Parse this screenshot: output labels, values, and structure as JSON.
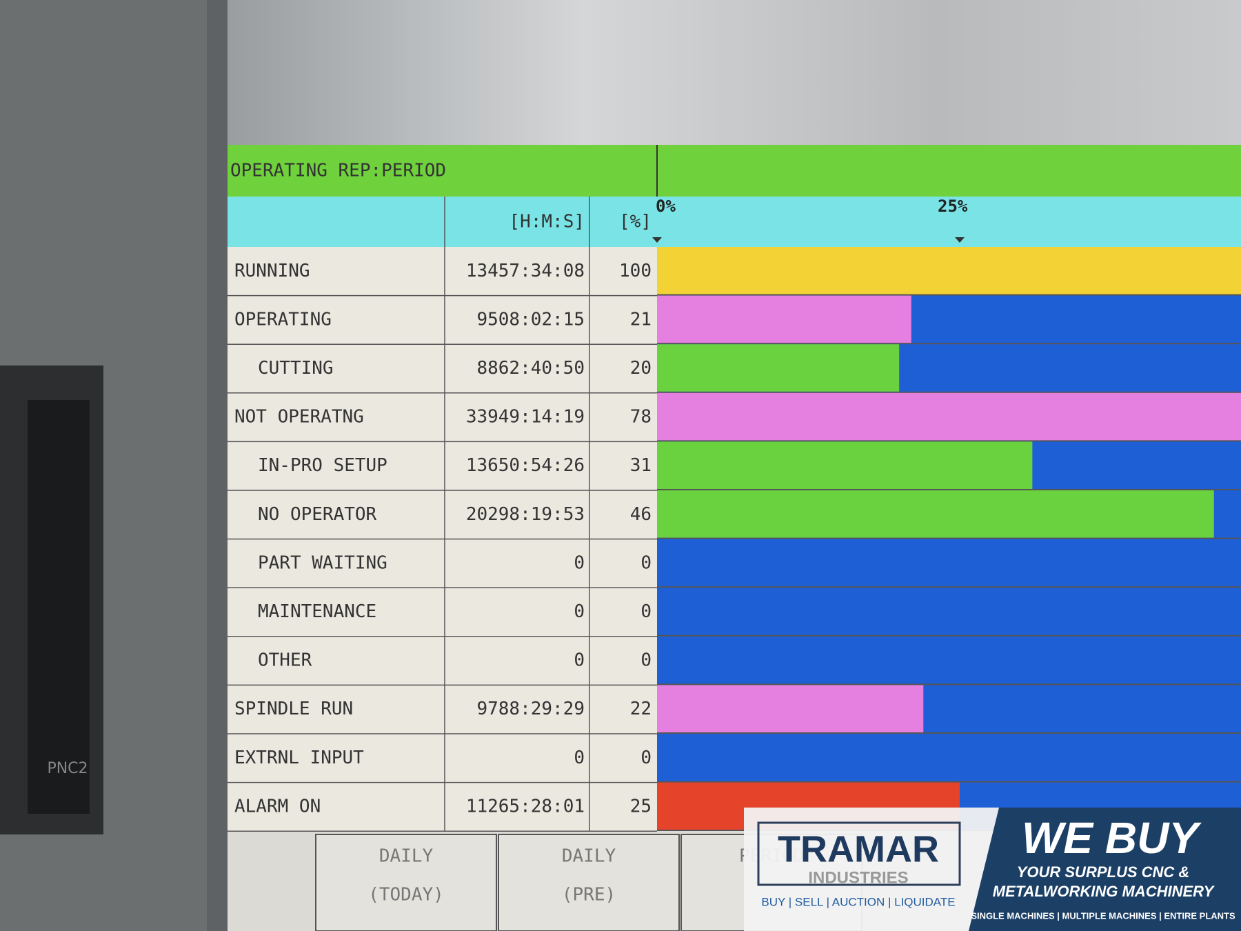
{
  "screen": {
    "title": "OPERATING REP:PERIOD",
    "columns": {
      "time": "[H:M:S]",
      "percent": "[%]"
    },
    "scale_ticks": [
      {
        "value": 0,
        "label": "0%"
      },
      {
        "value": 25,
        "label": "25%"
      }
    ],
    "rows": [
      {
        "label": "RUNNING",
        "time": "13457:34:08",
        "percent": 100,
        "color": "#f2d234"
      },
      {
        "label": "OPERATING",
        "time": "9508:02:15",
        "percent": 21,
        "color": "#e57fe0"
      },
      {
        "label": "CUTTING",
        "time": "8862:40:50",
        "percent": 20,
        "color": "#6ad13f"
      },
      {
        "label": "NOT OPERATNG",
        "time": "33949:14:19",
        "percent": 78,
        "color": "#e57fe0"
      },
      {
        "label": "IN-PRO SETUP",
        "time": "13650:54:26",
        "percent": 31,
        "color": "#6ad13f"
      },
      {
        "label": "NO OPERATOR",
        "time": "20298:19:53",
        "percent": 46,
        "color": "#6ad13f"
      },
      {
        "label": "PART WAITING",
        "time": "0",
        "percent": 0,
        "color": "#6ad13f"
      },
      {
        "label": "MAINTENANCE",
        "time": "0",
        "percent": 0,
        "color": "#6ad13f"
      },
      {
        "label": "OTHER",
        "time": "0",
        "percent": 0,
        "color": "#6ad13f"
      },
      {
        "label": "SPINDLE RUN",
        "time": "9788:29:29",
        "percent": 22,
        "color": "#e57fe0"
      },
      {
        "label": "EXTRNL INPUT",
        "time": "0",
        "percent": 0,
        "color": "#e57fe0"
      },
      {
        "label": "ALARM ON",
        "time": "11265:28:01",
        "percent": 25,
        "color": "#e5432a"
      }
    ],
    "bar_background": "#1f5fd6",
    "buttons": [
      {
        "line1": "DAILY",
        "line2": "(TODAY)"
      },
      {
        "line1": "DAILY",
        "line2": "(PRE)"
      },
      {
        "line1": "PERIOD"
      }
    ],
    "bezel_label": "PNC2"
  },
  "overlay": {
    "brand": "TRAMAR",
    "sub": "INDUSTRIES",
    "tagline": "BUY | SELL | AUCTION | LIQUIDATE",
    "headline": "WE BUY",
    "line1": "YOUR SURPLUS CNC &",
    "line2": "METALWORKING MACHINERY",
    "footer": "SINGLE MACHINES | MULTIPLE MACHINES | ENTIRE PLANTS"
  }
}
